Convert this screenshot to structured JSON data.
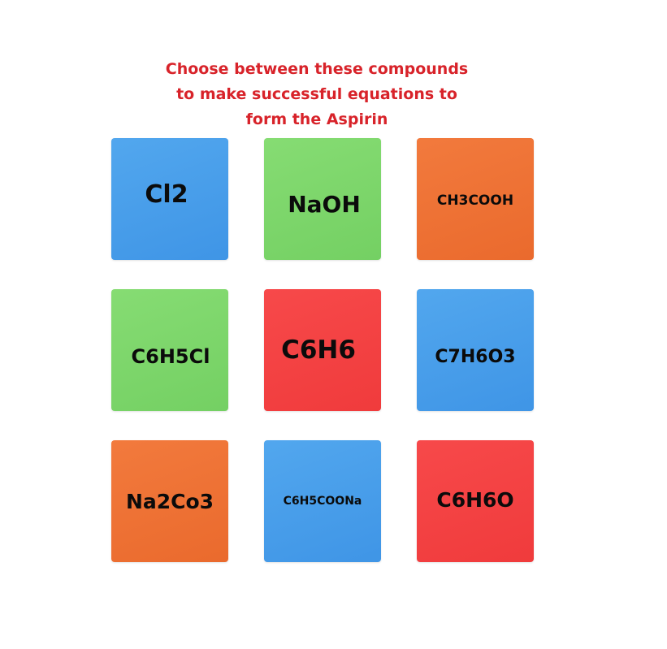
{
  "instructions": {
    "line1": "Choose between these compounds",
    "line2": "to make successful equations to",
    "line3": "form the Aspirin"
  },
  "tiles": [
    {
      "label": "Cl2",
      "color": "#4a9fec"
    },
    {
      "label": "NaOH",
      "color": "#7fd66c"
    },
    {
      "label": "CH3COOH",
      "color": "#ee7235"
    },
    {
      "label": "C6H5Cl",
      "color": "#7fd66c"
    },
    {
      "label": "C6H6",
      "color": "#f44344"
    },
    {
      "label": "C7H6O3",
      "color": "#4a9fec"
    },
    {
      "label": "Na2Co3",
      "color": "#ee7235"
    },
    {
      "label": "C6H5COONa",
      "color": "#4a9fec"
    },
    {
      "label": "C6H6O",
      "color": "#f44344"
    }
  ]
}
